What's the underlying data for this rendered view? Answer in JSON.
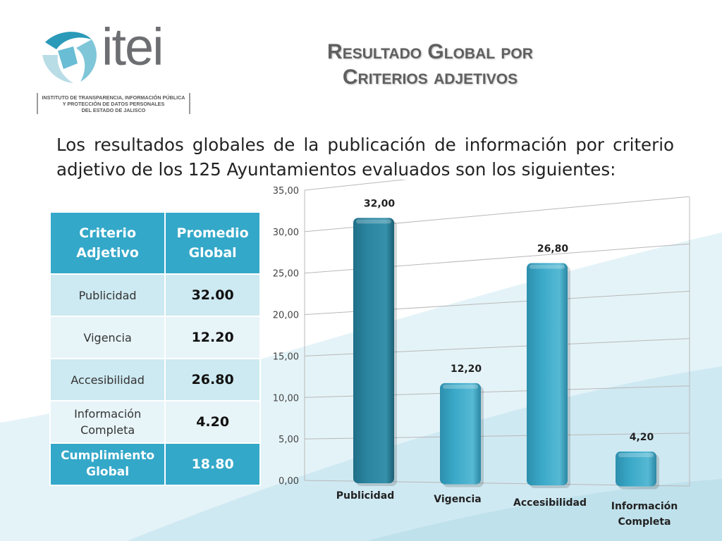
{
  "logo": {
    "word": "itei",
    "institute_lines": [
      "INSTITUTO DE TRANSPARENCIA, INFORMACIÓN PÚBLICA",
      "Y PROTECCIÓN DE DATOS PERSONALES",
      "DEL ESTADO DE JALISCO"
    ]
  },
  "title": {
    "line1": "Resultado Global por",
    "line2": "Criterios adjetivos"
  },
  "intro": "Los resultados globales de la publicación de información por criterio adjetivo de los 125 Ayuntamientos evaluados son los siguientes:",
  "table": {
    "headers": [
      "Criterio Adjetivo",
      "Promedio Global"
    ],
    "rows": [
      {
        "criterio": "Publicidad",
        "promedio": "32.00"
      },
      {
        "criterio": "Vigencia",
        "promedio": "12.20"
      },
      {
        "criterio": "Accesibilidad",
        "promedio": "26.80"
      },
      {
        "criterio": "Información Completa",
        "promedio": "4.20"
      }
    ],
    "total": {
      "criterio": "Cumplimiento Global",
      "promedio": "18.80"
    }
  },
  "colors": {
    "accent": "#34a8c9",
    "table_row_dark": "#cde9f1",
    "table_row_light": "#e7f4f8",
    "bar_first": "#2b85a0",
    "bar": "#3aa8c8",
    "background_wave": "#d8eef5"
  },
  "chart_data": {
    "type": "bar",
    "categories": [
      "Publicidad",
      "Vigencia",
      "Accesibilidad",
      "Información Completa"
    ],
    "values": [
      32.0,
      12.2,
      26.8,
      4.2
    ],
    "data_labels": [
      "32,00",
      "12,20",
      "26,80",
      "4,20"
    ],
    "y_ticks": [
      "0,00",
      "5,00",
      "10,00",
      "15,00",
      "20,00",
      "25,00",
      "30,00",
      "35,00"
    ],
    "ylim": [
      0,
      35
    ],
    "grid": true,
    "legend": "none",
    "title": "",
    "xlabel": "",
    "ylabel": ""
  }
}
